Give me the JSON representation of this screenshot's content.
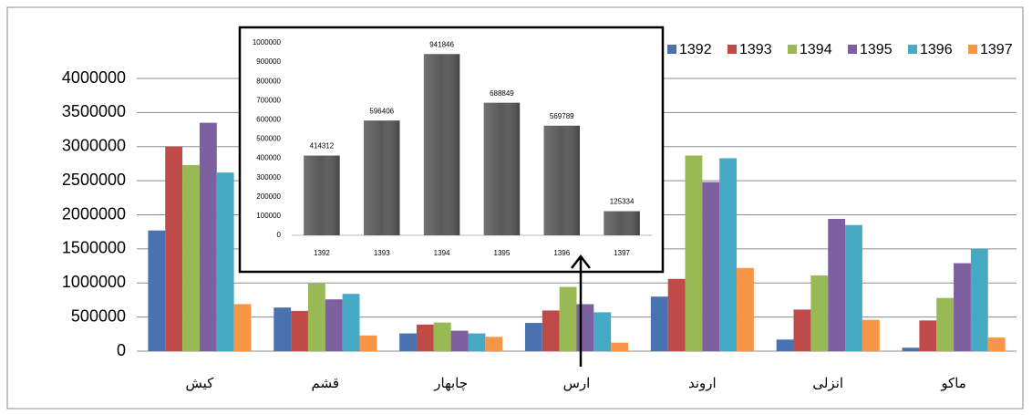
{
  "chart_data": [
    {
      "type": "bar",
      "categories": [
        "کیش",
        "قشم",
        "چابهار",
        "ارس",
        "اروند",
        "انزلی",
        "ماکو"
      ],
      "series": [
        {
          "name": "1392",
          "color": "#4a72b0",
          "values": [
            1770000,
            640000,
            260000,
            414312,
            800000,
            170000,
            50000
          ]
        },
        {
          "name": "1393",
          "color": "#be4b48",
          "values": [
            3000000,
            590000,
            390000,
            596406,
            1060000,
            610000,
            450000
          ]
        },
        {
          "name": "1394",
          "color": "#98b954",
          "values": [
            2730000,
            990000,
            420000,
            941846,
            2870000,
            1110000,
            780000
          ]
        },
        {
          "name": "1395",
          "color": "#7d60a0",
          "values": [
            3350000,
            760000,
            300000,
            688849,
            2480000,
            1940000,
            1290000
          ]
        },
        {
          "name": "1396",
          "color": "#46aac5",
          "values": [
            2620000,
            840000,
            260000,
            569789,
            2830000,
            1850000,
            1500000
          ]
        },
        {
          "name": "1397",
          "color": "#f79646",
          "values": [
            690000,
            230000,
            210000,
            125334,
            1220000,
            460000,
            200000
          ]
        }
      ],
      "ylim": [
        0,
        4000000
      ],
      "yticks": [
        0,
        500000,
        1000000,
        1500000,
        2000000,
        2500000,
        3000000,
        3500000,
        4000000
      ],
      "grid": true,
      "legend": "top-right"
    },
    {
      "type": "bar",
      "categories": [
        "1392",
        "1393",
        "1394",
        "1395",
        "1396",
        "1397"
      ],
      "values": [
        414312,
        596406,
        941846,
        688849,
        569789,
        125334
      ],
      "color": "#595959",
      "ylim": [
        0,
        1000000
      ],
      "yticks": [
        0,
        100000,
        200000,
        300000,
        400000,
        500000,
        600000,
        700000,
        800000,
        900000,
        1000000
      ],
      "grid": false
    }
  ]
}
